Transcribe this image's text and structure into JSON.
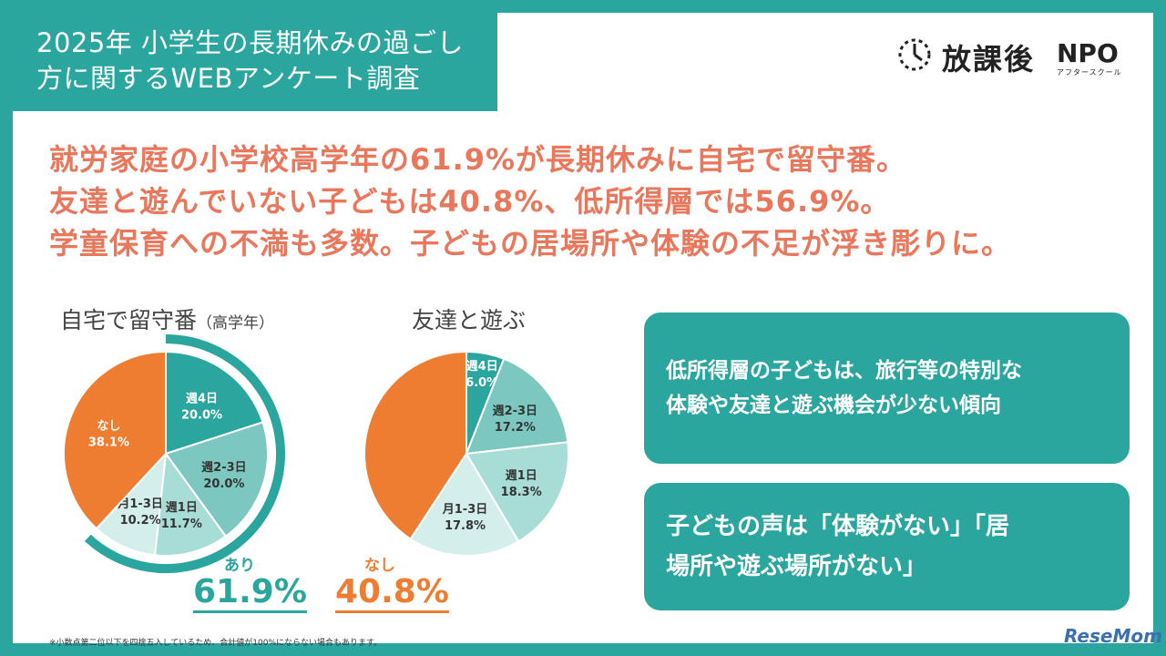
{
  "header": {
    "title_line1": "2025年 小学生の長期休みの過ごし",
    "title_line2": "方に関するWEBアンケート調査"
  },
  "logo": {
    "name": "放課後",
    "npo": "NPO",
    "sub": "アフタースクール",
    "icon": "clock-icon"
  },
  "headline": [
    "就労家庭の小学校高学年の61.9%が長期休みに自宅で留守番。",
    "友達と遊んでいない子どもは40.8%、低所得層では56.9%。",
    "学童保育への不満も多数。子どもの居場所や体験の不足が浮き彫りに。"
  ],
  "charts": {
    "home": {
      "title": "自宅で留守番",
      "title_note": "（高学年）",
      "highlight_label": "あり",
      "highlight_value": "61.9%"
    },
    "friends": {
      "title": "友達と遊ぶ",
      "highlight_label": "なし",
      "highlight_value": "40.8%"
    }
  },
  "chart_data": [
    {
      "type": "pie",
      "title": "自宅で留守番（高学年）",
      "slices": [
        {
          "label": "週4日",
          "value": 20.0,
          "display": "20.0%",
          "color": "#2aa69e"
        },
        {
          "label": "週2-3日",
          "value": 20.0,
          "display": "20.0%",
          "color": "#7cc8c0"
        },
        {
          "label": "週1日",
          "value": 11.7,
          "display": "11.7%",
          "color": "#a8dcd6"
        },
        {
          "label": "月1-3日",
          "value": 10.2,
          "display": "10.2%",
          "color": "#d4eeeb"
        },
        {
          "label": "なし",
          "value": 38.1,
          "display": "38.1%",
          "color": "#ee7d31"
        }
      ]
    },
    {
      "type": "pie",
      "title": "友達と遊ぶ",
      "slices": [
        {
          "label": "週4日",
          "value": 6.0,
          "display": "6.0%",
          "color": "#2aa69e"
        },
        {
          "label": "週2-3日",
          "value": 17.2,
          "display": "17.2%",
          "color": "#7cc8c0"
        },
        {
          "label": "週1日",
          "value": 18.3,
          "display": "18.3%",
          "color": "#a8dcd6"
        },
        {
          "label": "月1-3日",
          "value": 17.8,
          "display": "17.8%",
          "color": "#d4eeeb"
        },
        {
          "label": "なし",
          "value": 40.8,
          "display": "",
          "color": "#ee7d31"
        }
      ]
    }
  ],
  "callouts": [
    {
      "text_line1": "低所得層の子どもは、旅行等の特別な",
      "text_line2": "体験や友達と遊ぶ機会が少ない傾向"
    },
    {
      "text_line1": "子どもの声は「体験がない」「居",
      "text_line2": "場所や遊ぶ場所がない」"
    }
  ],
  "footnote": "※小数点第二位以下を四捨五入しているため、合計値が100%にならない場合もあります。",
  "watermark": "ReseMom",
  "colors": {
    "teal": "#2aa69e",
    "orange": "#ee7d31",
    "headline": "#e8775c"
  }
}
